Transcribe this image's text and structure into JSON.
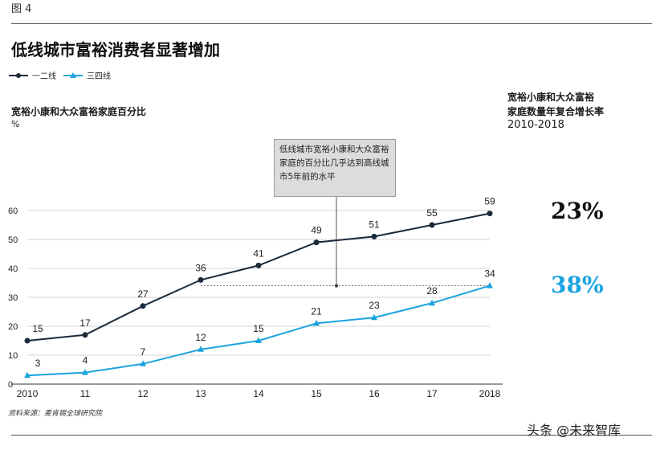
{
  "figure_label": "图 4",
  "title": "低线城市富裕消费者显著增加",
  "legend": [
    {
      "name": "一二线",
      "color": "#1a2a3a",
      "marker": "circle"
    },
    {
      "name": "三四线",
      "color": "#1aa3e0",
      "marker": "triangle"
    }
  ],
  "y_axis_title": "宽裕小康和大众富裕家庭百分比",
  "y_axis_unit": "%",
  "cagr": {
    "title_line1": "宽裕小康和大众富裕",
    "title_line2": "家庭数量年复合增长率",
    "period": "2010-2018",
    "tier12": "23%",
    "tier34": "38%"
  },
  "annotation": "低线城市宽裕小康和大众富裕家庭的百分比几乎达到高线城市5年前的水平",
  "source": "资料来源：麦肯锡全球研究院",
  "watermark": "头条 @未来智库",
  "chart_data": {
    "type": "line",
    "x": [
      "2010",
      "11",
      "12",
      "13",
      "14",
      "15",
      "16",
      "17",
      "2018"
    ],
    "series": [
      {
        "name": "一二线",
        "values": [
          15,
          17,
          27,
          36,
          41,
          49,
          51,
          55,
          59
        ],
        "color": "#1a2a3a",
        "marker": "circle"
      },
      {
        "name": "三四线",
        "values": [
          3,
          4,
          7,
          12,
          15,
          21,
          23,
          28,
          34
        ],
        "color": "#1aa3e0",
        "marker": "triangle"
      }
    ],
    "ylim": [
      0,
      60
    ],
    "yticks": [
      0,
      10,
      20,
      30,
      40,
      50,
      60
    ],
    "grid": true
  }
}
